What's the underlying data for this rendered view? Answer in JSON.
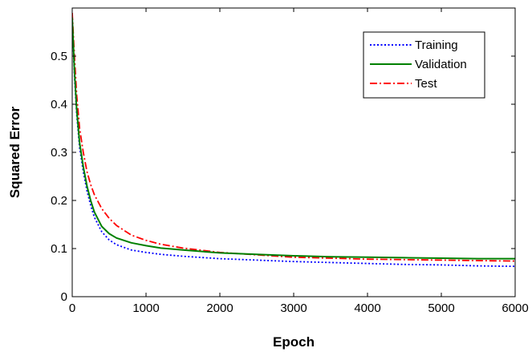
{
  "chart_data": {
    "type": "line",
    "title": "",
    "xlabel": "Epoch",
    "ylabel": "Squared Error",
    "xlim": [
      0,
      6000
    ],
    "ylim": [
      0,
      0.6
    ],
    "xticks": [
      0,
      1000,
      2000,
      3000,
      4000,
      5000,
      6000
    ],
    "yticks": [
      0,
      0.1,
      0.2,
      0.3,
      0.4,
      0.5
    ],
    "xtick_labels": [
      "0",
      "1000",
      "2000",
      "3000",
      "4000",
      "5000",
      "6000"
    ],
    "ytick_labels": [
      "0",
      "0.1",
      "0.2",
      "0.3",
      "0.4",
      "0.5"
    ],
    "grid": false,
    "legend_position": "top-right",
    "x": [
      0,
      30,
      60,
      100,
      150,
      200,
      250,
      300,
      400,
      500,
      600,
      800,
      1000,
      1200,
      1500,
      2000,
      2500,
      3000,
      3500,
      4000,
      4500,
      5000,
      5500,
      6000
    ],
    "series": [
      {
        "name": "Training",
        "color": "#0000ff",
        "style": "dotted",
        "values": [
          0.58,
          0.46,
          0.38,
          0.31,
          0.26,
          0.22,
          0.19,
          0.165,
          0.135,
          0.118,
          0.108,
          0.097,
          0.092,
          0.088,
          0.084,
          0.079,
          0.076,
          0.073,
          0.071,
          0.069,
          0.067,
          0.066,
          0.064,
          0.063
        ]
      },
      {
        "name": "Validation",
        "color": "#008000",
        "style": "solid",
        "values": [
          0.58,
          0.47,
          0.39,
          0.32,
          0.27,
          0.23,
          0.2,
          0.176,
          0.146,
          0.131,
          0.122,
          0.112,
          0.106,
          0.101,
          0.097,
          0.091,
          0.088,
          0.085,
          0.083,
          0.082,
          0.081,
          0.08,
          0.079,
          0.079
        ]
      },
      {
        "name": "Test",
        "color": "#ff0000",
        "style": "dashdot",
        "values": [
          0.59,
          0.5,
          0.42,
          0.35,
          0.3,
          0.26,
          0.233,
          0.212,
          0.183,
          0.163,
          0.148,
          0.128,
          0.117,
          0.109,
          0.101,
          0.092,
          0.087,
          0.082,
          0.08,
          0.078,
          0.077,
          0.076,
          0.075,
          0.074
        ]
      }
    ]
  }
}
